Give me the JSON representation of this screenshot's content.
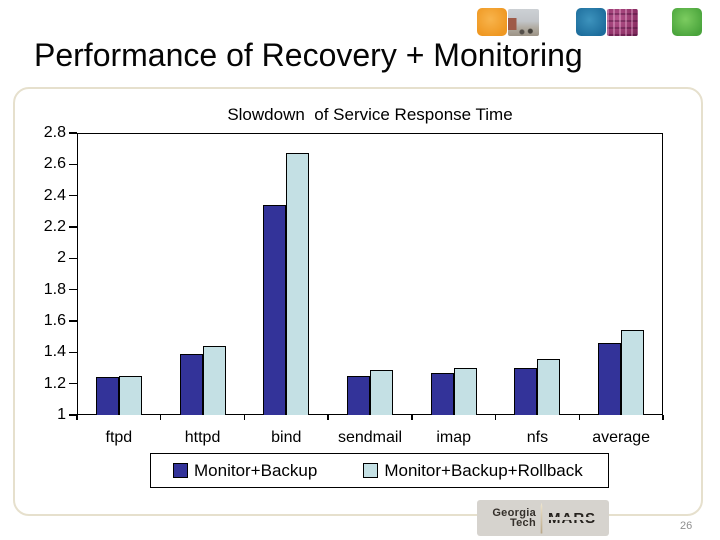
{
  "slide": {
    "title": "Performance of Recovery + Monitoring",
    "decorations": [
      {
        "name": "orange-square",
        "color": "#ef9822"
      },
      {
        "name": "campus-photo-thumbnail"
      },
      {
        "name": "blue-square",
        "color": "#1d6d9c"
      },
      {
        "name": "circuit-photo-thumbnail"
      },
      {
        "name": "green-square",
        "color": "#4aa43c"
      }
    ]
  },
  "chart_data": {
    "type": "bar",
    "title": "Slowdown  of Service Response Time",
    "categories": [
      "ftpd",
      "httpd",
      "bind",
      "sendmail",
      "imap",
      "nfs",
      "average"
    ],
    "series": [
      {
        "name": "Monitor+Backup",
        "color": "#333399",
        "values": [
          1.24,
          1.39,
          2.34,
          1.25,
          1.27,
          1.3,
          1.46
        ]
      },
      {
        "name": "Monitor+Backup+Rollback",
        "color": "#c4e0e4",
        "values": [
          1.25,
          1.44,
          2.67,
          1.29,
          1.3,
          1.36,
          1.54
        ]
      }
    ],
    "xlabel": "",
    "ylabel": "",
    "ylim": [
      1,
      2.8
    ],
    "ytick_step": 0.2,
    "ytick_labels": [
      "1",
      "1.2",
      "1.4",
      "1.6",
      "1.8",
      "2",
      "2.2",
      "2.4",
      "2.6",
      "2.8"
    ],
    "grid": false,
    "legend_position": "bottom",
    "bar_border_color": "#000000"
  },
  "footer": {
    "logo": {
      "line1": "Georgia",
      "line2": "Tech",
      "mars": "MARS"
    },
    "page_number": "26"
  },
  "colors": {
    "panel_border": "#e6e0cd",
    "logo_background": "#d6d3ce",
    "page_number_text": "#8f8f8f"
  }
}
